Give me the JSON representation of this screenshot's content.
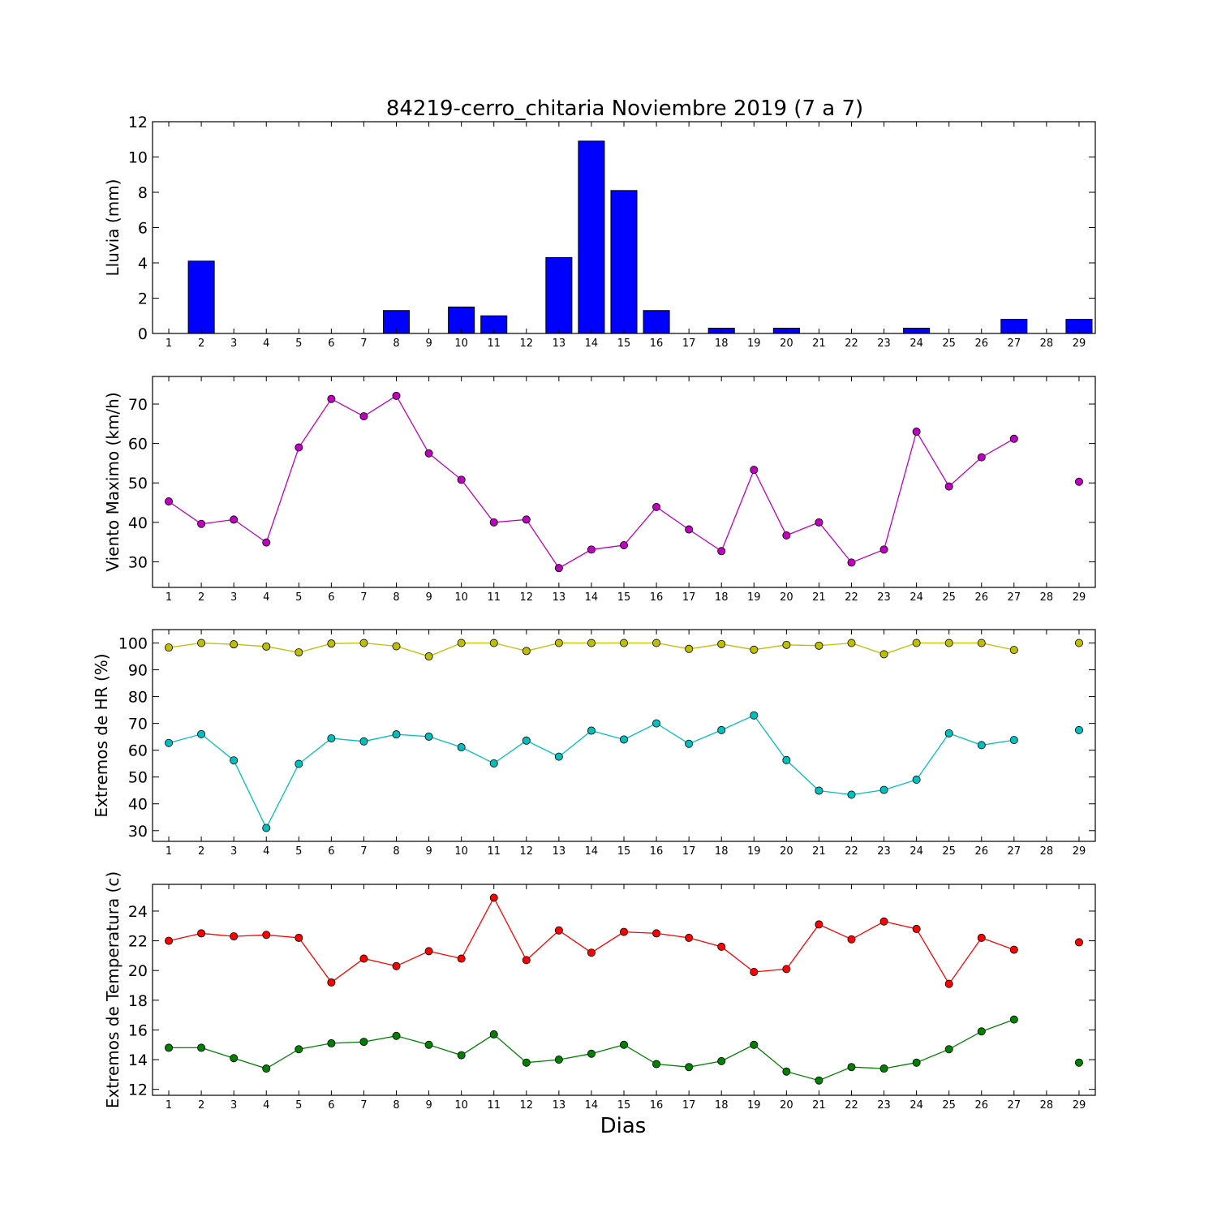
{
  "figure": {
    "title": "84219-cerro_chitaria Noviembre 2019  (7 a 7)",
    "xlabel": "Dias"
  },
  "chart_data": [
    {
      "type": "bar",
      "ylabel": "Lluvia (mm)",
      "ylim": [
        0,
        12
      ],
      "yticks": [
        0,
        2,
        4,
        6,
        8,
        10,
        12
      ],
      "categories": [
        1,
        2,
        3,
        4,
        5,
        6,
        7,
        8,
        9,
        10,
        11,
        12,
        13,
        14,
        15,
        16,
        17,
        18,
        19,
        20,
        21,
        22,
        23,
        24,
        25,
        26,
        27,
        28,
        29
      ],
      "series": [
        {
          "color": "#0000ff",
          "values": [
            0,
            4.1,
            0,
            0,
            0,
            0,
            0,
            1.3,
            0,
            1.5,
            1.0,
            0,
            4.3,
            10.9,
            8.1,
            1.3,
            0,
            0.3,
            0,
            0.3,
            0,
            0,
            0,
            0.3,
            0,
            0,
            0.8,
            0,
            0.8
          ]
        }
      ]
    },
    {
      "type": "line",
      "ylabel": "Viento Maximo (km/h)",
      "ylim": [
        23.5,
        77
      ],
      "yticks": [
        30,
        40,
        50,
        60,
        70
      ],
      "categories": [
        1,
        2,
        3,
        4,
        5,
        6,
        7,
        8,
        9,
        10,
        11,
        12,
        13,
        14,
        15,
        16,
        17,
        18,
        19,
        20,
        21,
        22,
        23,
        24,
        25,
        26,
        27,
        28,
        29
      ],
      "series": [
        {
          "color": "#bf00bf",
          "values": [
            45.3,
            39.6,
            40.7,
            34.9,
            59.0,
            71.3,
            66.9,
            72.1,
            57.5,
            50.8,
            40.0,
            40.7,
            28.4,
            33.1,
            34.2,
            43.9,
            38.2,
            32.7,
            53.3,
            36.7,
            40.0,
            29.8,
            33.1,
            63.0,
            49.1,
            56.5,
            61.2,
            null,
            50.3
          ]
        }
      ]
    },
    {
      "type": "line",
      "ylabel": "Extremos de HR (%)",
      "ylim": [
        26,
        105
      ],
      "yticks": [
        30,
        40,
        50,
        60,
        70,
        80,
        90,
        100
      ],
      "categories": [
        1,
        2,
        3,
        4,
        5,
        6,
        7,
        8,
        9,
        10,
        11,
        12,
        13,
        14,
        15,
        16,
        17,
        18,
        19,
        20,
        21,
        22,
        23,
        24,
        25,
        26,
        27,
        28,
        29
      ],
      "series": [
        {
          "color": "#bfbf00",
          "values": [
            98.3,
            100,
            99.5,
            98.7,
            96.5,
            99.8,
            100,
            98.8,
            95.0,
            100,
            100,
            97.0,
            100,
            100,
            100,
            100,
            97.8,
            99.6,
            97.5,
            99.3,
            99.0,
            100,
            95.8,
            100,
            100,
            100,
            97.4,
            null,
            100
          ]
        },
        {
          "color": "#00bfbf",
          "values": [
            62.7,
            66.0,
            56.2,
            31.0,
            54.9,
            64.4,
            63.3,
            65.9,
            65.1,
            61.1,
            55.1,
            63.6,
            57.6,
            67.3,
            64.0,
            70.0,
            62.4,
            67.5,
            73.0,
            56.3,
            44.9,
            43.4,
            45.2,
            49.0,
            66.3,
            61.9,
            63.8,
            null,
            67.5
          ]
        }
      ]
    },
    {
      "type": "line",
      "ylabel": "Extremos de Temperatura (c)",
      "ylim": [
        11.6,
        25.8
      ],
      "yticks": [
        12,
        14,
        16,
        18,
        20,
        22,
        24
      ],
      "categories": [
        1,
        2,
        3,
        4,
        5,
        6,
        7,
        8,
        9,
        10,
        11,
        12,
        13,
        14,
        15,
        16,
        17,
        18,
        19,
        20,
        21,
        22,
        23,
        24,
        25,
        26,
        27,
        28,
        29
      ],
      "series": [
        {
          "color": "#ff0000",
          "values": [
            22.0,
            22.5,
            22.3,
            22.4,
            22.2,
            19.2,
            20.8,
            20.3,
            21.3,
            20.8,
            24.9,
            20.7,
            22.7,
            21.2,
            22.6,
            22.5,
            22.2,
            21.6,
            19.9,
            20.1,
            23.1,
            22.1,
            23.3,
            22.8,
            19.1,
            22.2,
            21.4,
            null,
            21.9
          ]
        },
        {
          "color": "#008000",
          "values": [
            14.8,
            14.8,
            14.1,
            13.4,
            14.7,
            15.1,
            15.2,
            15.6,
            15.0,
            14.3,
            15.7,
            13.8,
            14.0,
            14.4,
            15.0,
            13.7,
            13.5,
            13.9,
            15.0,
            13.2,
            12.6,
            13.5,
            13.4,
            13.8,
            14.7,
            15.9,
            16.7,
            null,
            13.8
          ]
        }
      ]
    }
  ]
}
